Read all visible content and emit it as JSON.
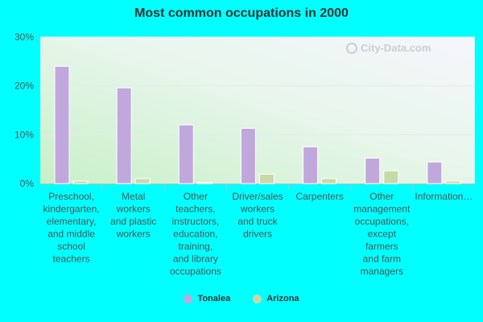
{
  "chart_data": {
    "type": "bar",
    "title": "Most common occupations in 2000",
    "categories": [
      [
        "Preschool,",
        "kindergarten,",
        "elementary,",
        "and middle",
        "school",
        "teachers"
      ],
      [
        "Metal",
        "workers",
        "and plastic",
        "workers"
      ],
      [
        "Other",
        "teachers,",
        "instructors,",
        "education,",
        "training,",
        "and library",
        "occupations"
      ],
      [
        "Driver/sales",
        "workers",
        "and truck",
        "drivers"
      ],
      [
        "Carpenters"
      ],
      [
        "Other",
        "management",
        "occupations,",
        "except",
        "farmers",
        "and farm",
        "managers"
      ],
      [
        "Information…"
      ]
    ],
    "series": [
      {
        "name": "Tonalea",
        "values": [
          24.0,
          19.6,
          12.0,
          11.3,
          7.5,
          5.2,
          4.4
        ]
      },
      {
        "name": "Arizona",
        "values": [
          0.5,
          1.0,
          0.2,
          1.9,
          1.0,
          2.6,
          0.5
        ]
      }
    ],
    "ylim": [
      0,
      30
    ],
    "yticks": [
      "0%",
      "10%",
      "20%",
      "30%"
    ],
    "ytick_values": [
      0,
      10,
      20,
      30
    ],
    "grid": true,
    "legend": "bottom-center",
    "colors": {
      "Tonalea": "#c0a8dc",
      "Arizona": "#c8d9a8"
    }
  },
  "watermark": "City-Data.com"
}
